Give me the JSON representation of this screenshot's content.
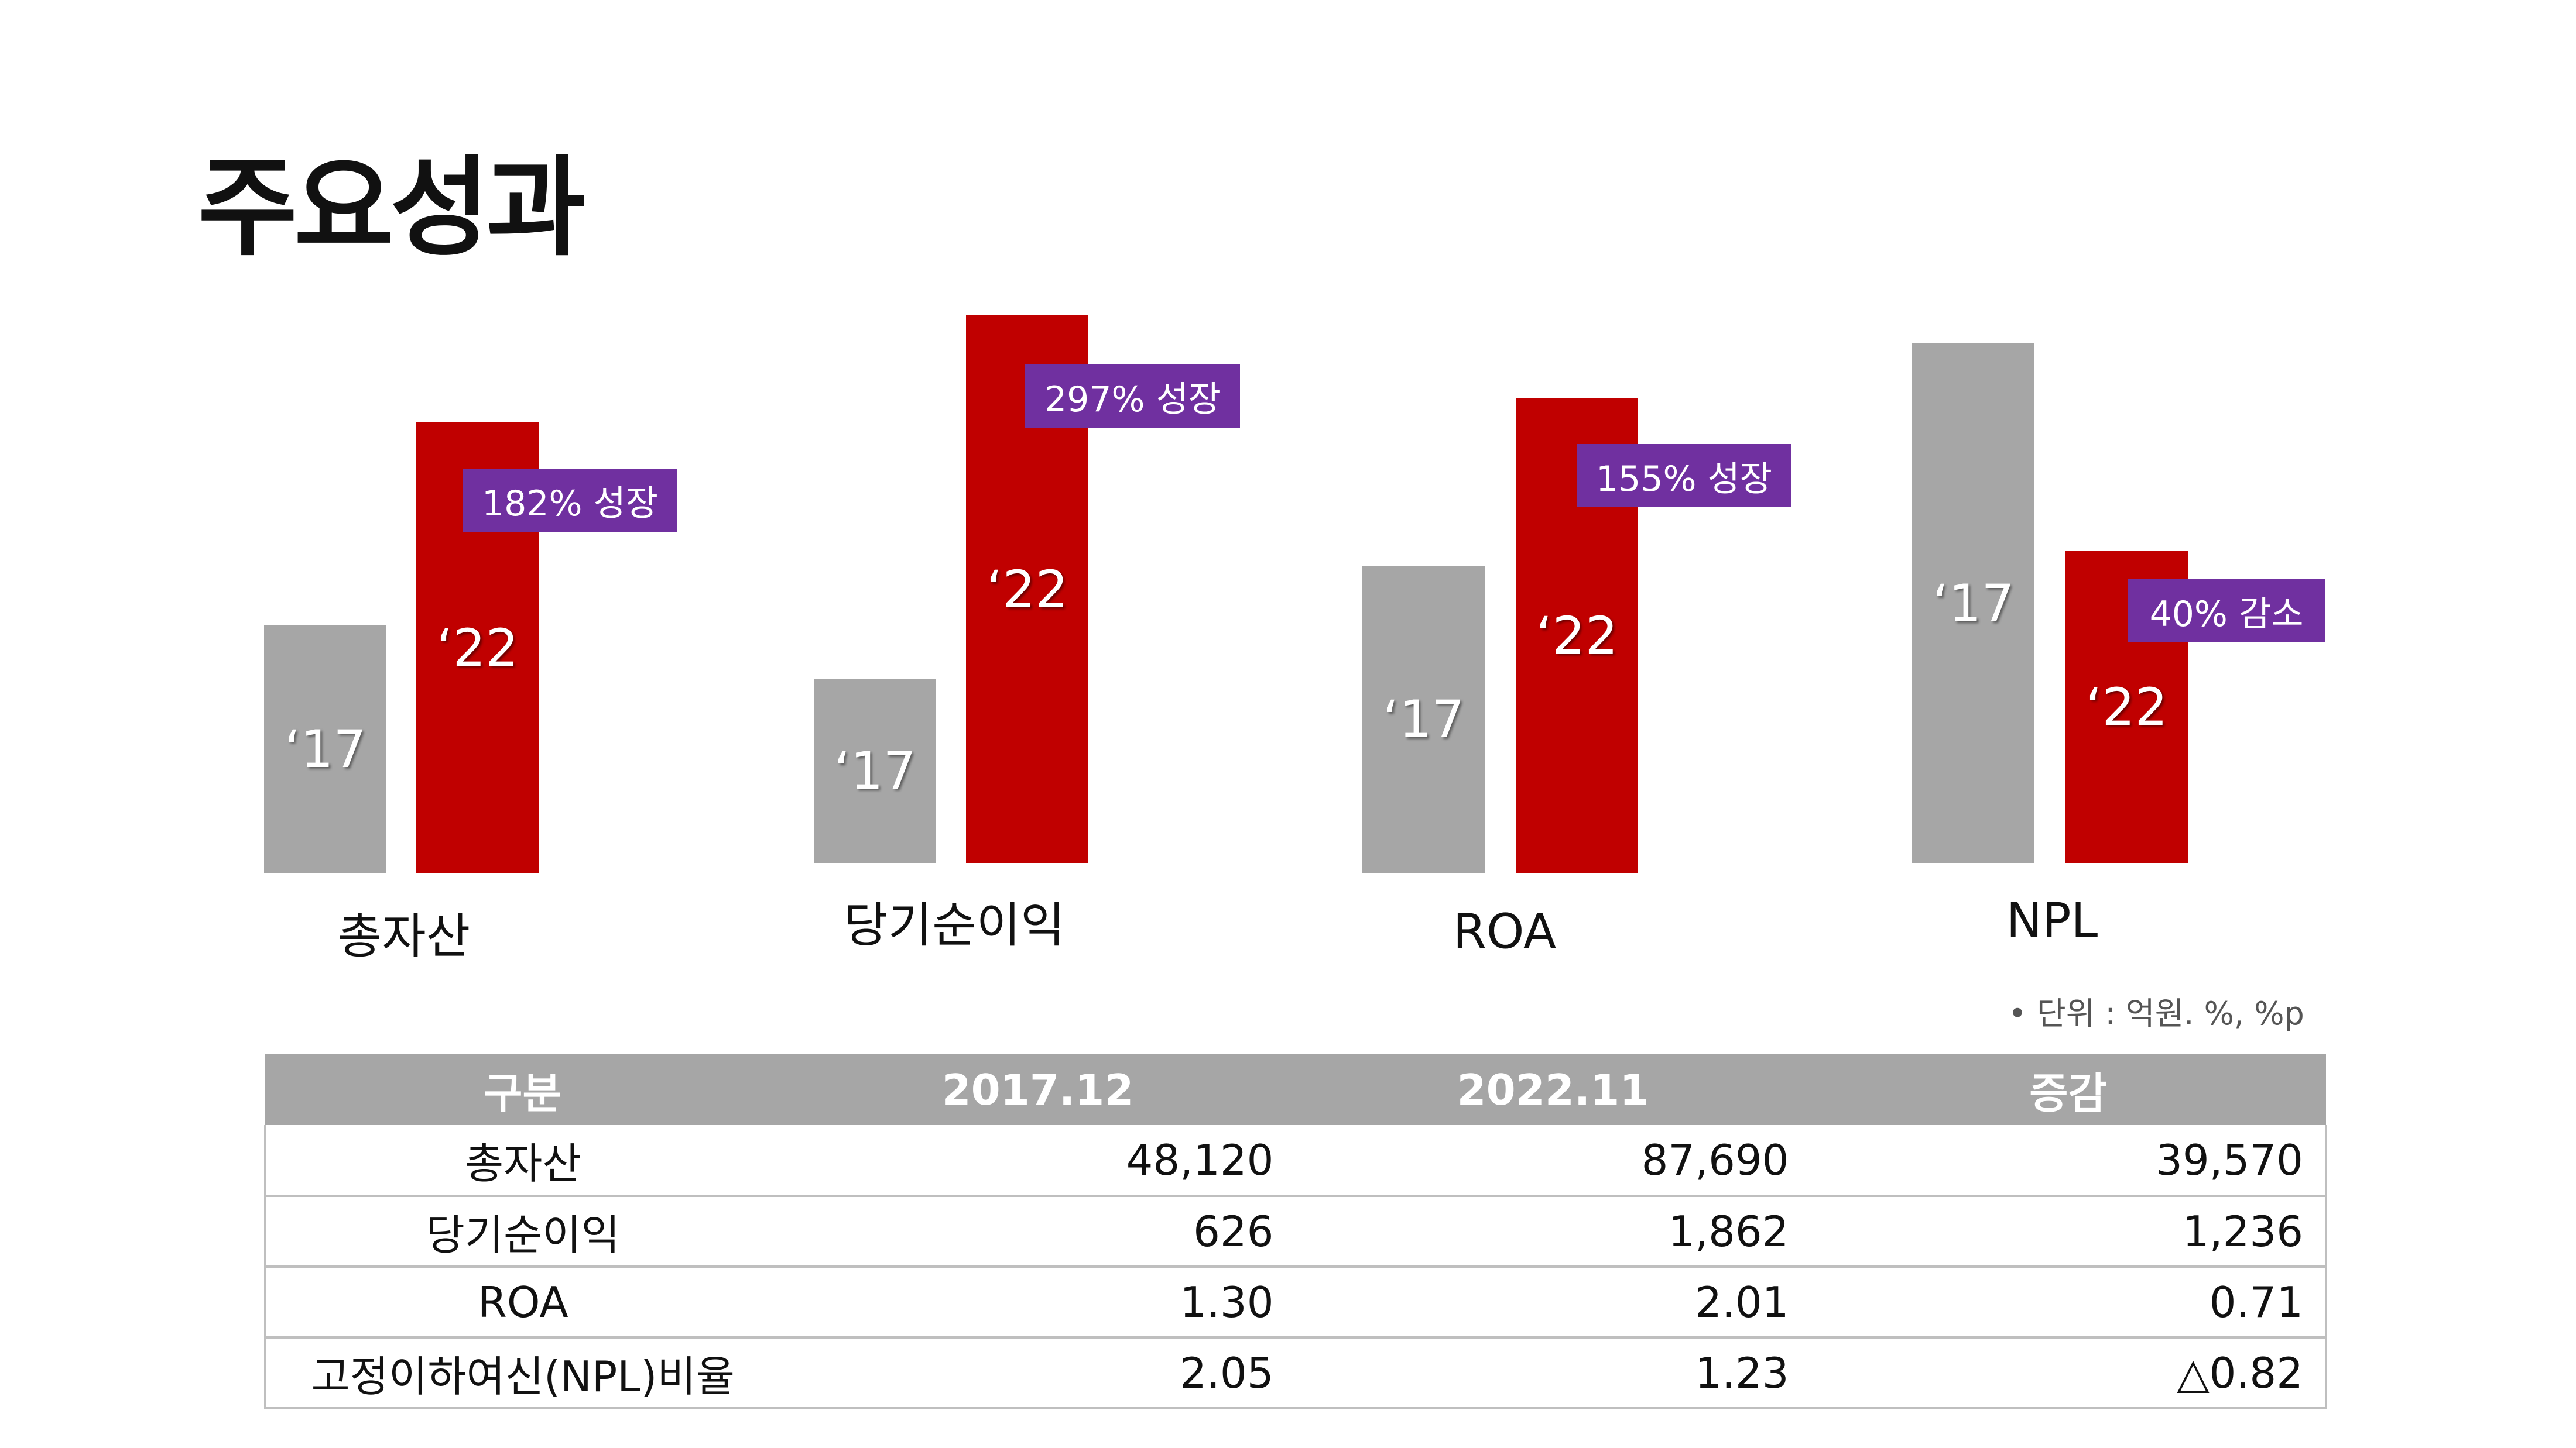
{
  "title": "주요성과",
  "chart_data": {
    "type": "bar",
    "categories": [
      "총자산",
      "당기순이익",
      "ROA",
      "NPL"
    ],
    "series": [
      {
        "name": "‘17",
        "values": [
          48120,
          626,
          1.3,
          2.05
        ]
      },
      {
        "name": "‘22",
        "values": [
          87690,
          1862,
          2.01,
          1.23
        ]
      }
    ],
    "bar_labels": [
      "‘17",
      "‘22"
    ],
    "callouts": [
      "182% 성장",
      "297% 성장",
      "155% 성장",
      "40% 감소"
    ],
    "colors": {
      "2017": "#a6a6a6",
      "2022": "#c00000",
      "callout": "#7030a0"
    }
  },
  "unit_note": "•  단위 : 억원. %, %p",
  "table": {
    "headers": [
      "구분",
      "2017.12",
      "2022.11",
      "증감"
    ],
    "rows": [
      [
        "총자산",
        "48,120",
        "87,690",
        "39,570"
      ],
      [
        "당기순이익",
        "626",
        "1,862",
        "1,236"
      ],
      [
        "ROA",
        "1.30",
        "2.01",
        "0.71"
      ],
      [
        "고정이하여신(NPL)비율",
        "2.05",
        "1.23",
        "△0.82"
      ]
    ]
  }
}
